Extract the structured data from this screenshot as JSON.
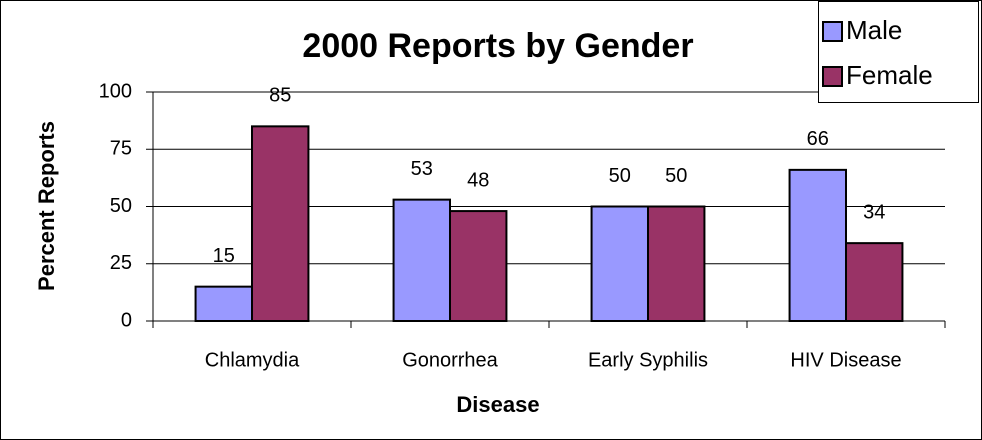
{
  "chart_data": {
    "type": "bar",
    "title": "2000 Reports by Gender",
    "x_label": "Disease",
    "y_label": "Percent Reports",
    "categories": [
      "Chlamydia",
      "Gonorrhea",
      "Early Syphilis",
      "HIV Disease"
    ],
    "series": [
      {
        "name": "Male",
        "color": "#9999ff",
        "values": [
          15,
          53,
          50,
          66
        ]
      },
      {
        "name": "Female",
        "color": "#993366",
        "values": [
          85,
          48,
          50,
          34
        ]
      }
    ],
    "ylim": [
      0,
      100
    ],
    "yticks": [
      0,
      25,
      50,
      75,
      100
    ],
    "grid": true,
    "legend": "top-right"
  }
}
